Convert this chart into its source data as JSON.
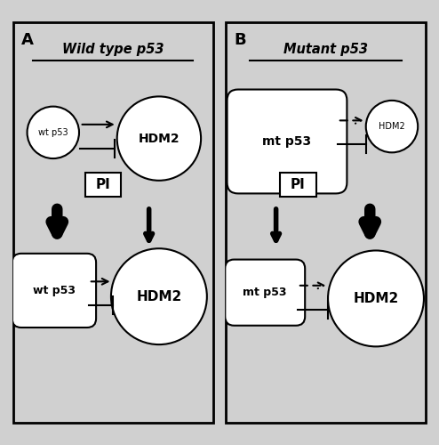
{
  "fig_width": 4.94,
  "fig_height": 5.0,
  "bg_color": "#d0d0d0",
  "panel_bg": "#ffffff",
  "title_A": "Wild type p53",
  "title_B": "Mutant p53",
  "label_A": "A",
  "label_B": "B"
}
